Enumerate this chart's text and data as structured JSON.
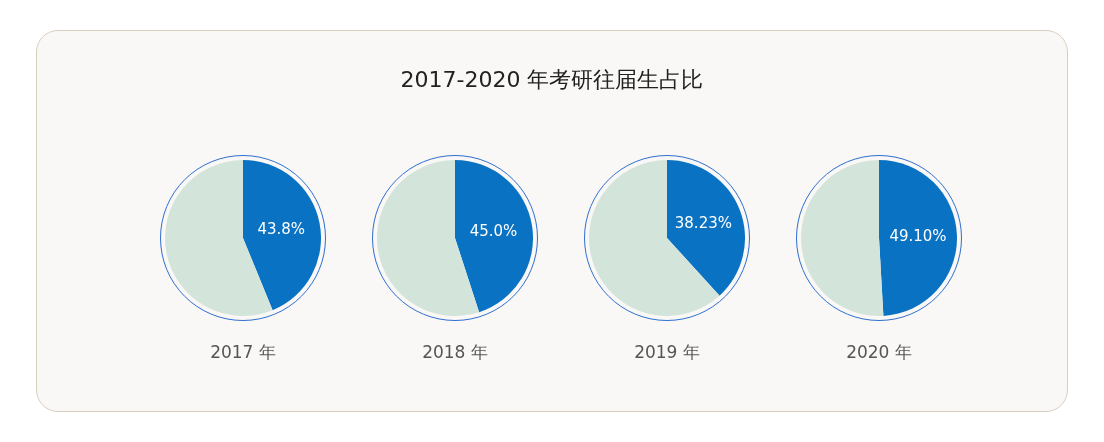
{
  "chart_data": [
    {
      "type": "pie",
      "title": "2017-2020 年考研往届生占比",
      "xlabel": "2017 年",
      "categories": [
        null,
        null
      ],
      "values": [
        43.8,
        56.2
      ],
      "colors": [
        "#0a72c2",
        "#d3e5da"
      ],
      "value_labels": [
        "43.8%",
        null
      ]
    },
    {
      "type": "pie",
      "xlabel": "2018 年",
      "categories": [
        null,
        null
      ],
      "values": [
        45.0,
        55.0
      ],
      "colors": [
        "#0a72c2",
        "#d3e5da"
      ],
      "value_labels": [
        "45.0%",
        null
      ]
    },
    {
      "type": "pie",
      "xlabel": "2019 年",
      "categories": [
        null,
        null
      ],
      "values": [
        38.23,
        61.77
      ],
      "colors": [
        "#0a72c2",
        "#d3e5da"
      ],
      "value_labels": [
        "38.23%",
        null
      ]
    },
    {
      "type": "pie",
      "xlabel": "2020 年",
      "categories": [
        null,
        null
      ],
      "values": [
        49.1,
        50.9
      ],
      "colors": [
        "#0a72c2",
        "#d3e5da"
      ],
      "value_labels": [
        "49.10%",
        null
      ]
    }
  ]
}
